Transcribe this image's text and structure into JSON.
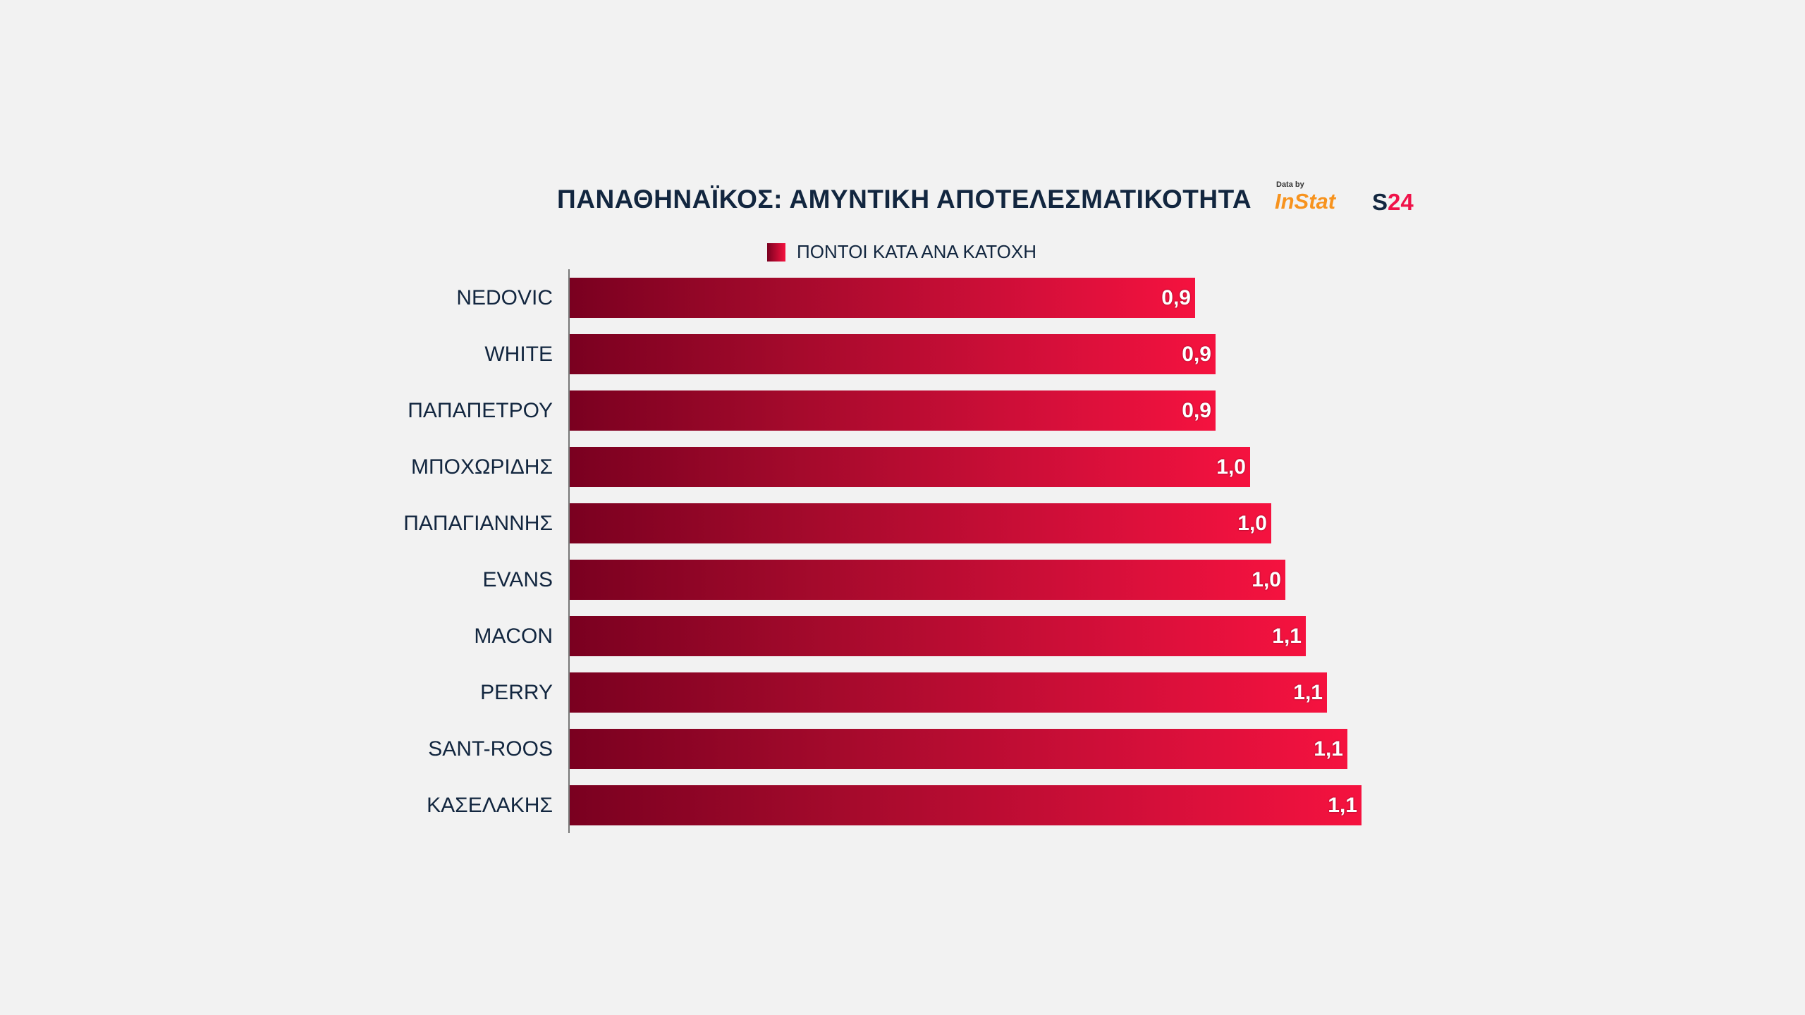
{
  "chart_data": {
    "type": "bar",
    "orientation": "horizontal",
    "title_bold": "ΠΑΝΑΘΗΝΑΪΚΟΣ:",
    "title_rest": "ΑΜΥΝΤΙΚΗ ΑΠΟΤΕΛΕΣΜΑΤΙΚΟΤΗΤΑ",
    "legend": [
      "ΠΟΝΤΟΙ ΚΑΤΑ ΑΝΑ ΚΑΤΟΧΗ"
    ],
    "legend_placement": "top-center",
    "categories": [
      "NEDOVIC",
      "WHITE",
      "ΠΑΠΑΠΕΤΡΟΥ",
      "ΜΠΟΧΩΡΙΔΗΣ",
      "ΠΑΠΑΓΙΑΝΝΗΣ",
      "EVANS",
      "MACON",
      "PERRY",
      "SANT-ROOS",
      "ΚΑΣΕΛΑΚΗΣ"
    ],
    "values": [
      0.9,
      0.93,
      0.93,
      0.98,
      1.01,
      1.03,
      1.06,
      1.09,
      1.12,
      1.14
    ],
    "labels": [
      "0,9",
      "0,9",
      "0,9",
      "1,0",
      "1,0",
      "1,0",
      "1,1",
      "1,1",
      "1,1",
      "1,1"
    ],
    "xlim": [
      0,
      1.2
    ],
    "grid": false
  },
  "logo": {
    "data_by": "Data by",
    "instat": "InStat",
    "s24_s": "S",
    "s24_n": "24"
  },
  "colors": {
    "bar_start": "#7a0020",
    "bar_end": "#f5123f",
    "text": "#12263f"
  }
}
